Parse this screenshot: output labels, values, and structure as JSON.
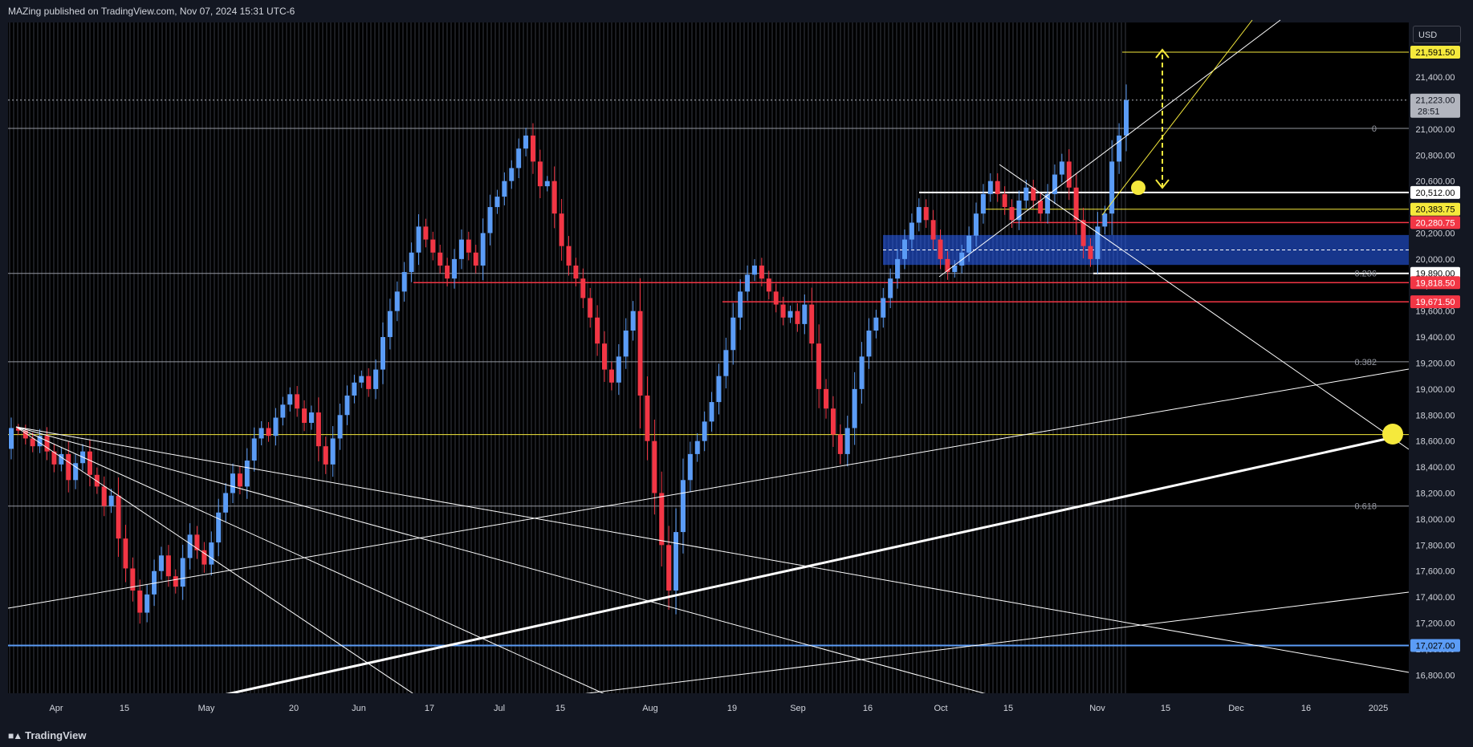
{
  "header": {
    "publish_text": "MAZing published on TradingView.com, Nov 07, 2024 15:31 UTC-6"
  },
  "currency": "USD",
  "footer": {
    "brand": "TradingView"
  },
  "chart_data": {
    "type": "candlestick",
    "symbol_currency": "USD",
    "x_ticks": [
      "Apr",
      "15",
      "May",
      "20",
      "Jun",
      "17",
      "Jul",
      "15",
      "Aug",
      "19",
      "Sep",
      "16",
      "Oct",
      "15",
      "Nov",
      "15",
      "Dec",
      "16",
      "2025"
    ],
    "y_ticks": [
      16800,
      17000,
      17200,
      17400,
      17600,
      17800,
      18000,
      18200,
      18400,
      18600,
      18800,
      19000,
      19200,
      19400,
      19600,
      19800,
      20000,
      20200,
      20400,
      20600,
      20800,
      21000,
      21200,
      21400
    ],
    "y_tick_labels": [
      "16,800.00",
      "17,000.00",
      "17,200.00",
      "17,400.00",
      "17,600.00",
      "17,800.00",
      "18,000.00",
      "18,200.00",
      "18,400.00",
      "18,600.00",
      "18,800.00",
      "19,000.00",
      "19,200.00",
      "19,400.00",
      "19,600.00",
      "19,800.00",
      "20,000.00",
      "20,200.00",
      "20,400.00",
      "20,600.00",
      "20,800.00",
      "21,000.00",
      "21,200.00",
      "21,400.00"
    ],
    "ylim": [
      16660,
      21820
    ],
    "last_price": {
      "value": "21,223.00",
      "countdown": "28:51"
    },
    "price_labels": [
      {
        "text": "21,591.50",
        "value": 21591.5,
        "bg": "#f5e93c",
        "fg": "#000000"
      },
      {
        "text": "20,512.00",
        "value": 20512,
        "bg": "#ffffff",
        "fg": "#000000"
      },
      {
        "text": "20,383.75",
        "value": 20383.75,
        "bg": "#f5e93c",
        "fg": "#000000"
      },
      {
        "text": "20,280.75",
        "value": 20280.75,
        "bg": "#f23645",
        "fg": "#ffffff"
      },
      {
        "text": "19,890.00",
        "value": 19890,
        "bg": "#ffffff",
        "fg": "#000000"
      },
      {
        "text": "19,818.50",
        "value": 19818.5,
        "bg": "#f23645",
        "fg": "#ffffff"
      },
      {
        "text": "19,671.50",
        "value": 19671.5,
        "bg": "#f23645",
        "fg": "#ffffff"
      },
      {
        "text": "17,027.00",
        "value": 17027,
        "bg": "#5b9cf6",
        "fg": "#000000"
      }
    ],
    "fib_levels": [
      {
        "label": "0",
        "value": 21005
      },
      {
        "label": "0.236",
        "value": 19890
      },
      {
        "label": "0.382",
        "value": 19210
      },
      {
        "label": "0.618",
        "value": 18100
      }
    ],
    "demand_zone": {
      "low": 19955,
      "high": 20185,
      "color": "#2962ff"
    },
    "candles": [
      [
        18540,
        18700
      ],
      [
        18700,
        18680
      ],
      [
        18680,
        18620
      ],
      [
        18620,
        18560
      ],
      [
        18560,
        18640
      ],
      [
        18640,
        18520
      ],
      [
        18520,
        18420
      ],
      [
        18420,
        18500
      ],
      [
        18500,
        18300
      ],
      [
        18300,
        18430
      ],
      [
        18430,
        18520
      ],
      [
        18520,
        18340
      ],
      [
        18340,
        18250
      ],
      [
        18250,
        18100
      ],
      [
        18100,
        18180
      ],
      [
        18180,
        17850
      ],
      [
        17850,
        17620
      ],
      [
        17620,
        17450
      ],
      [
        17450,
        17280
      ],
      [
        17280,
        17420
      ],
      [
        17420,
        17600
      ],
      [
        17600,
        17720
      ],
      [
        17720,
        17560
      ],
      [
        17560,
        17480
      ],
      [
        17480,
        17700
      ],
      [
        17700,
        17880
      ],
      [
        17880,
        17760
      ],
      [
        17760,
        17650
      ],
      [
        17650,
        17820
      ],
      [
        17820,
        18050
      ],
      [
        18050,
        18200
      ],
      [
        18200,
        18350
      ],
      [
        18350,
        18250
      ],
      [
        18250,
        18450
      ],
      [
        18450,
        18620
      ],
      [
        18620,
        18700
      ],
      [
        18700,
        18640
      ],
      [
        18640,
        18780
      ],
      [
        18780,
        18880
      ],
      [
        18880,
        18960
      ],
      [
        18960,
        18850
      ],
      [
        18850,
        18740
      ],
      [
        18740,
        18820
      ],
      [
        18820,
        18560
      ],
      [
        18560,
        18420
      ],
      [
        18420,
        18620
      ],
      [
        18620,
        18800
      ],
      [
        18800,
        18950
      ],
      [
        18950,
        19050
      ],
      [
        19050,
        19100
      ],
      [
        19100,
        19000
      ],
      [
        19000,
        19150
      ],
      [
        19150,
        19400
      ],
      [
        19400,
        19600
      ],
      [
        19600,
        19750
      ],
      [
        19750,
        19900
      ],
      [
        19900,
        20050
      ],
      [
        20050,
        20250
      ],
      [
        20250,
        20150
      ],
      [
        20150,
        20050
      ],
      [
        20050,
        19950
      ],
      [
        19950,
        19850
      ],
      [
        19850,
        20000
      ],
      [
        20000,
        20150
      ],
      [
        20150,
        20050
      ],
      [
        20050,
        19950
      ],
      [
        19950,
        20200
      ],
      [
        20200,
        20400
      ],
      [
        20400,
        20480
      ],
      [
        20480,
        20600
      ],
      [
        20600,
        20700
      ],
      [
        20700,
        20850
      ],
      [
        20850,
        20950
      ],
      [
        20950,
        20750
      ],
      [
        20750,
        20560
      ],
      [
        20560,
        20600
      ],
      [
        20600,
        20350
      ],
      [
        20350,
        20100
      ],
      [
        20100,
        19950
      ],
      [
        19950,
        19850
      ],
      [
        19850,
        19700
      ],
      [
        19700,
        19550
      ],
      [
        19550,
        19350
      ],
      [
        19350,
        19150
      ],
      [
        19150,
        19050
      ],
      [
        19050,
        19250
      ],
      [
        19250,
        19450
      ],
      [
        19450,
        19600
      ],
      [
        19600,
        18950
      ],
      [
        18950,
        18600
      ],
      [
        18600,
        18200
      ],
      [
        18200,
        17800
      ],
      [
        17800,
        17450
      ],
      [
        17450,
        17900
      ],
      [
        17900,
        18300
      ],
      [
        18300,
        18500
      ],
      [
        18500,
        18600
      ],
      [
        18600,
        18750
      ],
      [
        18750,
        18900
      ],
      [
        18900,
        19100
      ],
      [
        19100,
        19300
      ],
      [
        19300,
        19550
      ],
      [
        19550,
        19750
      ],
      [
        19750,
        19880
      ],
      [
        19880,
        19950
      ],
      [
        19950,
        19850
      ],
      [
        19850,
        19750
      ],
      [
        19750,
        19650
      ],
      [
        19650,
        19550
      ],
      [
        19550,
        19600
      ],
      [
        19600,
        19500
      ],
      [
        19500,
        19650
      ],
      [
        19650,
        19350
      ],
      [
        19350,
        19000
      ],
      [
        19000,
        18850
      ],
      [
        18850,
        18650
      ],
      [
        18650,
        18500
      ],
      [
        18500,
        18700
      ],
      [
        18700,
        19000
      ],
      [
        19000,
        19250
      ],
      [
        19250,
        19450
      ],
      [
        19450,
        19550
      ],
      [
        19550,
        19700
      ],
      [
        19700,
        19850
      ],
      [
        19850,
        20000
      ],
      [
        20000,
        20150
      ],
      [
        20150,
        20280
      ],
      [
        20280,
        20400
      ],
      [
        20400,
        20300
      ],
      [
        20300,
        20150
      ],
      [
        20150,
        20000
      ],
      [
        20000,
        19900
      ],
      [
        19900,
        19950
      ],
      [
        19950,
        20050
      ],
      [
        20050,
        20180
      ],
      [
        20180,
        20350
      ],
      [
        20350,
        20500
      ],
      [
        20500,
        20600
      ],
      [
        20600,
        20500
      ],
      [
        20500,
        20400
      ],
      [
        20400,
        20300
      ],
      [
        20300,
        20450
      ],
      [
        20450,
        20550
      ],
      [
        20550,
        20450
      ],
      [
        20450,
        20350
      ],
      [
        20350,
        20500
      ],
      [
        20500,
        20650
      ],
      [
        20650,
        20750
      ],
      [
        20750,
        20550
      ],
      [
        20550,
        20300
      ],
      [
        20300,
        20100
      ],
      [
        20100,
        20000
      ],
      [
        20000,
        20250
      ],
      [
        20250,
        20350
      ],
      [
        20350,
        20750
      ],
      [
        20750,
        20950
      ],
      [
        20950,
        21223
      ]
    ]
  }
}
